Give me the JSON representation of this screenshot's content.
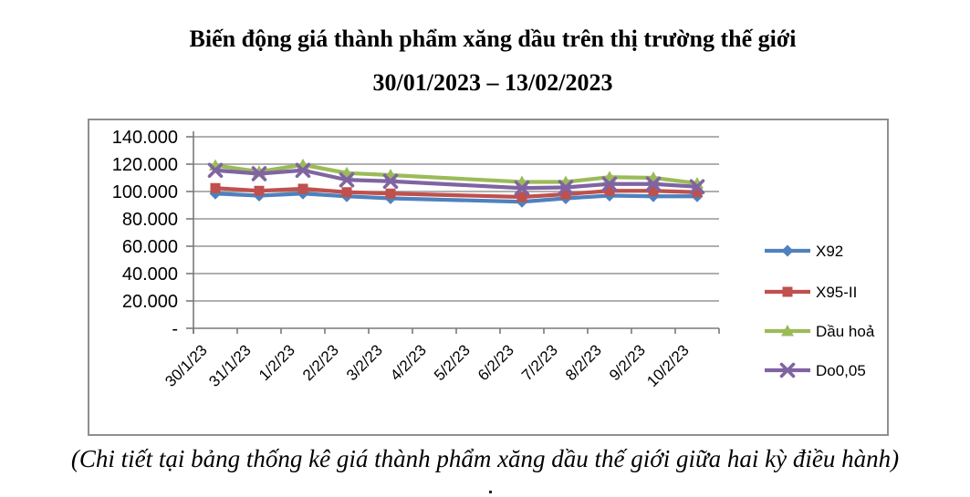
{
  "title": {
    "line1": "Biến động giá thành phẩm xăng dầu trên thị trường thế giới",
    "line2": "30/01/2023 – 13/02/2023"
  },
  "caption": "(Chi tiết tại bảng thống kê giá thành phẩm xăng dầu thế giới giữa hai kỳ điều hành)",
  "chart_data": {
    "type": "line",
    "title": "Biến động giá thành phẩm xăng dầu trên thị trường thế giới 30/01/2023 – 13/02/2023",
    "categories": [
      "30/1/23",
      "31/1/23",
      "1/2/23",
      "2/2/23",
      "3/2/23",
      "4/2/23",
      "5/2/23",
      "6/2/23",
      "7/2/23",
      "8/2/23",
      "9/2/23",
      "10/2/23"
    ],
    "series": [
      {
        "name": "X92",
        "color": "#4F81BD",
        "marker": "diamond",
        "values": [
          98.5,
          97.0,
          98.5,
          96.5,
          95.0,
          null,
          null,
          92.5,
          95.0,
          97.0,
          96.5,
          96.5
        ]
      },
      {
        "name": "X95-II",
        "color": "#C0504D",
        "marker": "square",
        "values": [
          102.5,
          100.5,
          102.0,
          99.5,
          98.5,
          null,
          null,
          96.0,
          98.0,
          100.5,
          100.5,
          99.5
        ]
      },
      {
        "name": "Dầu hoả",
        "color": "#9BBB59",
        "marker": "triangle",
        "values": [
          119.0,
          114.5,
          119.5,
          113.5,
          112.0,
          null,
          null,
          107.0,
          107.0,
          110.5,
          110.0,
          106.0
        ]
      },
      {
        "name": "Do0,05",
        "color": "#8064A2",
        "marker": "x",
        "values": [
          115.5,
          113.0,
          115.5,
          108.5,
          107.5,
          null,
          null,
          102.5,
          103.0,
          105.5,
          105.5,
          103.5
        ]
      }
    ],
    "xlabel": "",
    "ylabel": "",
    "ylim": [
      0,
      140
    ],
    "ytick_step": 20,
    "ytick_labels": [
      "-",
      "20.000",
      "40.000",
      "60.000",
      "80.000",
      "100.000",
      "120.000",
      "140.000"
    ],
    "grid": true,
    "legend_position": "right",
    "note": "values shown in thousands format (e.g. 100.000); no markers on 4/2/23 and 5/2/23, lines connect across"
  },
  "colors": {
    "grid": "#969696",
    "axis": "#7a7a7a",
    "frame": "#8f8f8f",
    "text": "#000000"
  }
}
